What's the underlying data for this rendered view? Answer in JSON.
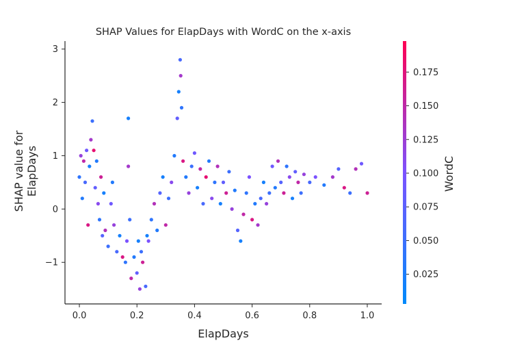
{
  "chart_data": {
    "type": "scatter",
    "title": "SHAP Values for ElapDays with WordC on the x-axis",
    "xlabel": "ElapDays",
    "ylabel": [
      "SHAP value for",
      "ElapDays"
    ],
    "xlim": [
      -0.05,
      1.05
    ],
    "ylim": [
      -1.78,
      3.15
    ],
    "x_ticks": [
      0.0,
      0.2,
      0.4,
      0.6,
      0.8,
      1.0
    ],
    "x_tick_labels": [
      "0.0",
      "0.2",
      "0.4",
      "0.6",
      "0.8",
      "1.0"
    ],
    "y_ticks": [
      -1,
      0,
      1,
      2,
      3
    ],
    "y_tick_labels": [
      "−1",
      "0",
      "1",
      "2",
      "3"
    ],
    "grid": false,
    "colorbar": {
      "label": "WordC",
      "range": [
        0.003,
        0.198
      ],
      "ticks": [
        0.025,
        0.05,
        0.075,
        0.1,
        0.125,
        0.15,
        0.175
      ],
      "tick_labels": [
        "0.025",
        "0.050",
        "0.075",
        "0.100",
        "0.125",
        "0.150",
        "0.175"
      ],
      "colors": [
        "#008afb",
        "#7c52ff",
        "#ff0052"
      ]
    },
    "series": [
      {
        "points": [
          [
            0.0,
            0.6,
            0.04
          ],
          [
            0.005,
            1.0,
            0.12
          ],
          [
            0.01,
            0.2,
            0.03
          ],
          [
            0.015,
            0.9,
            0.15
          ],
          [
            0.02,
            0.5,
            0.06
          ],
          [
            0.025,
            1.1,
            0.09
          ],
          [
            0.03,
            -0.3,
            0.17
          ],
          [
            0.035,
            0.8,
            0.02
          ],
          [
            0.04,
            1.3,
            0.13
          ],
          [
            0.045,
            1.65,
            0.05
          ],
          [
            0.05,
            1.1,
            0.18
          ],
          [
            0.055,
            0.4,
            0.08
          ],
          [
            0.06,
            0.9,
            0.03
          ],
          [
            0.065,
            0.1,
            0.11
          ],
          [
            0.07,
            -0.2,
            0.04
          ],
          [
            0.075,
            0.6,
            0.16
          ],
          [
            0.08,
            -0.5,
            0.07
          ],
          [
            0.085,
            0.3,
            0.02
          ],
          [
            0.09,
            -0.4,
            0.14
          ],
          [
            0.1,
            -0.7,
            0.05
          ],
          [
            0.11,
            0.1,
            0.09
          ],
          [
            0.115,
            0.5,
            0.03
          ],
          [
            0.12,
            -0.3,
            0.12
          ],
          [
            0.13,
            -0.8,
            0.06
          ],
          [
            0.14,
            -0.5,
            0.02
          ],
          [
            0.15,
            -0.9,
            0.17
          ],
          [
            0.16,
            -1.0,
            0.04
          ],
          [
            0.165,
            -0.6,
            0.1
          ],
          [
            0.17,
            1.7,
            0.02
          ],
          [
            0.17,
            0.8,
            0.13
          ],
          [
            0.175,
            -0.2,
            0.05
          ],
          [
            0.18,
            -1.3,
            0.15
          ],
          [
            0.19,
            -0.9,
            0.03
          ],
          [
            0.2,
            -1.2,
            0.08
          ],
          [
            0.205,
            -0.6,
            0.02
          ],
          [
            0.21,
            -1.5,
            0.12
          ],
          [
            0.215,
            -0.8,
            0.05
          ],
          [
            0.22,
            -1.0,
            0.16
          ],
          [
            0.23,
            -1.45,
            0.06
          ],
          [
            0.235,
            -0.5,
            0.02
          ],
          [
            0.24,
            -0.6,
            0.1
          ],
          [
            0.25,
            -0.2,
            0.04
          ],
          [
            0.26,
            0.1,
            0.14
          ],
          [
            0.27,
            -0.4,
            0.03
          ],
          [
            0.28,
            0.3,
            0.07
          ],
          [
            0.29,
            0.6,
            0.02
          ],
          [
            0.3,
            -0.3,
            0.15
          ],
          [
            0.31,
            0.2,
            0.05
          ],
          [
            0.32,
            0.5,
            0.11
          ],
          [
            0.33,
            1.0,
            0.03
          ],
          [
            0.34,
            1.7,
            0.08
          ],
          [
            0.345,
            2.2,
            0.02
          ],
          [
            0.35,
            2.8,
            0.06
          ],
          [
            0.352,
            2.5,
            0.13
          ],
          [
            0.355,
            1.9,
            0.04
          ],
          [
            0.36,
            0.9,
            0.17
          ],
          [
            0.37,
            0.6,
            0.03
          ],
          [
            0.38,
            0.3,
            0.12
          ],
          [
            0.39,
            0.8,
            0.05
          ],
          [
            0.4,
            1.05,
            0.09
          ],
          [
            0.41,
            0.4,
            0.02
          ],
          [
            0.42,
            0.75,
            0.15
          ],
          [
            0.43,
            0.1,
            0.06
          ],
          [
            0.44,
            0.6,
            0.18
          ],
          [
            0.45,
            0.9,
            0.03
          ],
          [
            0.46,
            0.2,
            0.11
          ],
          [
            0.47,
            0.5,
            0.04
          ],
          [
            0.48,
            0.8,
            0.14
          ],
          [
            0.49,
            0.1,
            0.02
          ],
          [
            0.5,
            0.5,
            0.08
          ],
          [
            0.51,
            0.3,
            0.16
          ],
          [
            0.52,
            0.7,
            0.05
          ],
          [
            0.53,
            0.0,
            0.12
          ],
          [
            0.54,
            0.35,
            0.03
          ],
          [
            0.55,
            -0.4,
            0.07
          ],
          [
            0.56,
            -0.6,
            0.02
          ],
          [
            0.57,
            -0.1,
            0.15
          ],
          [
            0.58,
            0.3,
            0.04
          ],
          [
            0.59,
            0.6,
            0.1
          ],
          [
            0.6,
            -0.2,
            0.17
          ],
          [
            0.61,
            0.1,
            0.03
          ],
          [
            0.62,
            -0.3,
            0.13
          ],
          [
            0.63,
            0.2,
            0.06
          ],
          [
            0.64,
            0.5,
            0.02
          ],
          [
            0.65,
            0.1,
            0.12
          ],
          [
            0.66,
            0.3,
            0.05
          ],
          [
            0.67,
            0.8,
            0.09
          ],
          [
            0.68,
            0.4,
            0.03
          ],
          [
            0.69,
            0.9,
            0.14
          ],
          [
            0.7,
            0.5,
            0.07
          ],
          [
            0.71,
            0.3,
            0.16
          ],
          [
            0.72,
            0.8,
            0.04
          ],
          [
            0.73,
            0.6,
            0.11
          ],
          [
            0.74,
            0.2,
            0.02
          ],
          [
            0.75,
            0.7,
            0.08
          ],
          [
            0.76,
            0.5,
            0.15
          ],
          [
            0.77,
            0.3,
            0.05
          ],
          [
            0.78,
            0.65,
            0.12
          ],
          [
            0.8,
            0.5,
            0.06
          ],
          [
            0.82,
            0.6,
            0.1
          ],
          [
            0.85,
            0.45,
            0.03
          ],
          [
            0.88,
            0.6,
            0.13
          ],
          [
            0.9,
            0.75,
            0.07
          ],
          [
            0.92,
            0.4,
            0.17
          ],
          [
            0.94,
            0.3,
            0.05
          ],
          [
            0.96,
            0.75,
            0.14
          ],
          [
            0.98,
            0.85,
            0.09
          ],
          [
            1.0,
            0.3,
            0.16
          ]
        ]
      }
    ]
  }
}
